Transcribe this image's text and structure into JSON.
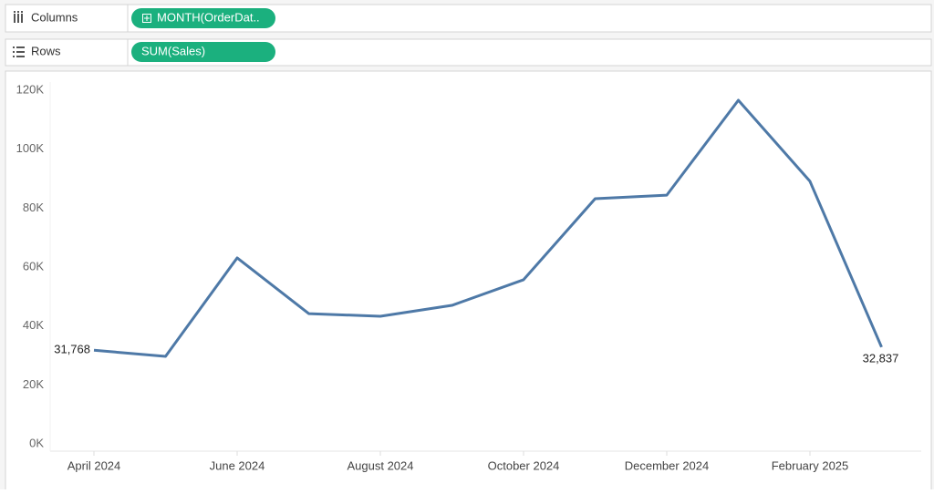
{
  "shelves": {
    "columns": {
      "label": "Columns",
      "pill": "MONTH(OrderDat.."
    },
    "rows": {
      "label": "Rows",
      "pill": "SUM(Sales)"
    }
  },
  "chart_data": {
    "type": "line",
    "categories": [
      "April 2024",
      null,
      "June 2024",
      null,
      "August 2024",
      null,
      "October 2024",
      null,
      "December 2024",
      null,
      "February 2025",
      null
    ],
    "values": [
      31768,
      29700,
      63100,
      44200,
      43300,
      47000,
      55700,
      83200,
      84400,
      116600,
      89100,
      32837
    ],
    "value_labels": [
      "31,768",
      null,
      null,
      null,
      null,
      null,
      null,
      null,
      null,
      null,
      null,
      "32,837"
    ],
    "color": "#4e79a7",
    "ylim": [
      0,
      120000
    ],
    "yticks": [
      {
        "value": 0,
        "label": "0K"
      },
      {
        "value": 20000,
        "label": "20K"
      },
      {
        "value": 40000,
        "label": "40K"
      },
      {
        "value": 60000,
        "label": "60K"
      },
      {
        "value": 80000,
        "label": "80K"
      },
      {
        "value": 100000,
        "label": "100K"
      },
      {
        "value": 120000,
        "label": "120K"
      }
    ],
    "grid": false
  }
}
